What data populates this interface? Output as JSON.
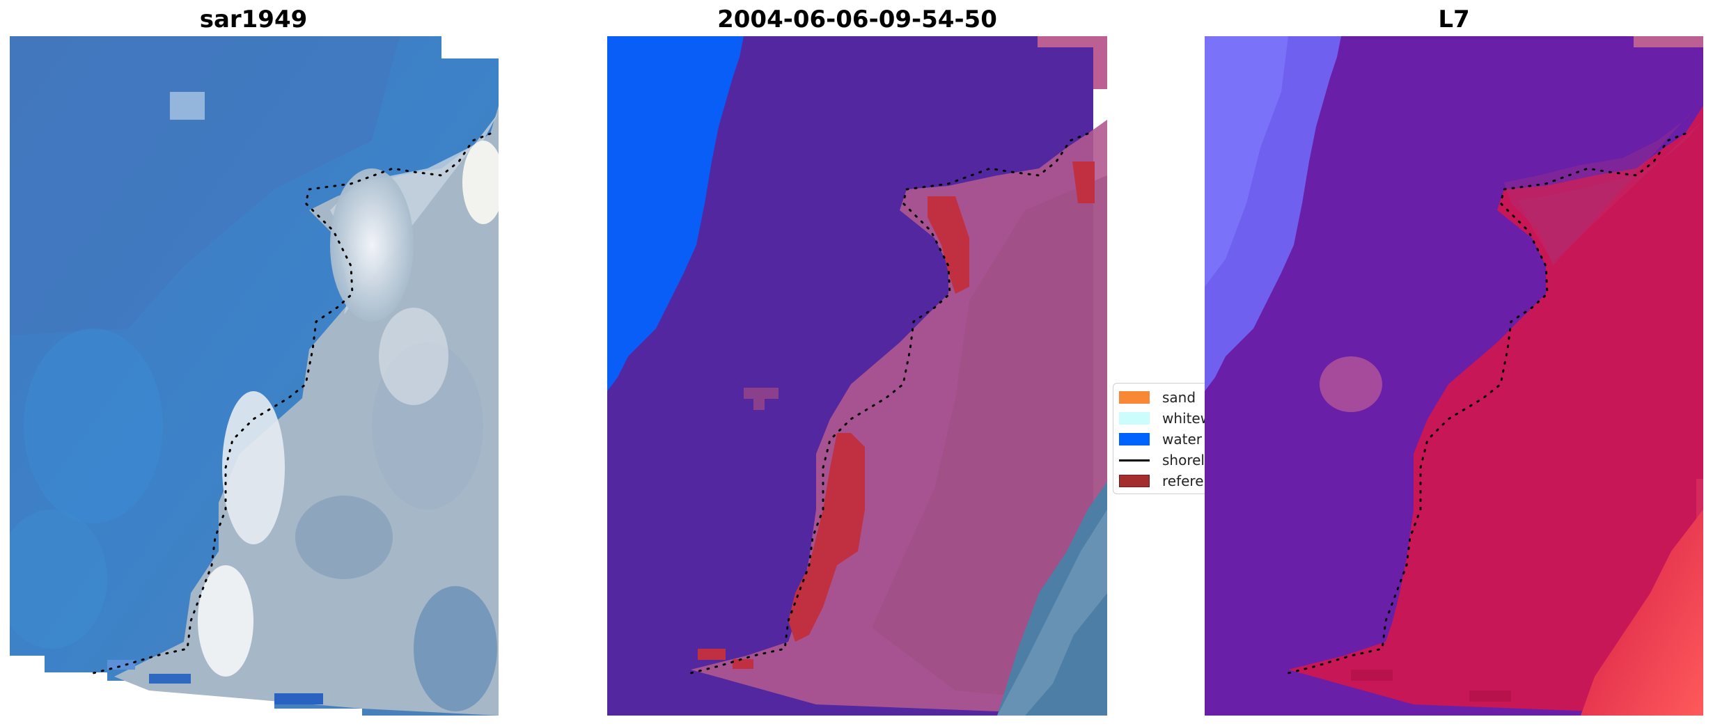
{
  "panels": [
    {
      "title": "sar1949"
    },
    {
      "title": "2004-06-06-09-54-50"
    },
    {
      "title": "L7"
    }
  ],
  "legend": [
    {
      "label": "sand",
      "color": "#f98836",
      "kind": "patch"
    },
    {
      "label": "whitewater",
      "color": "#ccfdfc",
      "kind": "patch"
    },
    {
      "label": "water",
      "color": "#0063fd",
      "kind": "patch"
    },
    {
      "label": "shoreline",
      "color": "#000000",
      "kind": "line"
    },
    {
      "label": "reference",
      "color": "#a32e2d",
      "kind": "patch"
    }
  ],
  "colors": {
    "rgb_water": "#3f7cc6",
    "rgb_foam": "#d9dfe8",
    "class_water_overlay": "#5327a0",
    "class_water_pixels": "#0a5ef8",
    "class_land": "#b1598f",
    "class_reference": "#c03040",
    "l7_water": "#6a1fa8",
    "l7_land": "#d0174f",
    "l7_sand": "#ff4a4a",
    "outside_mask": "#bc5f93"
  }
}
